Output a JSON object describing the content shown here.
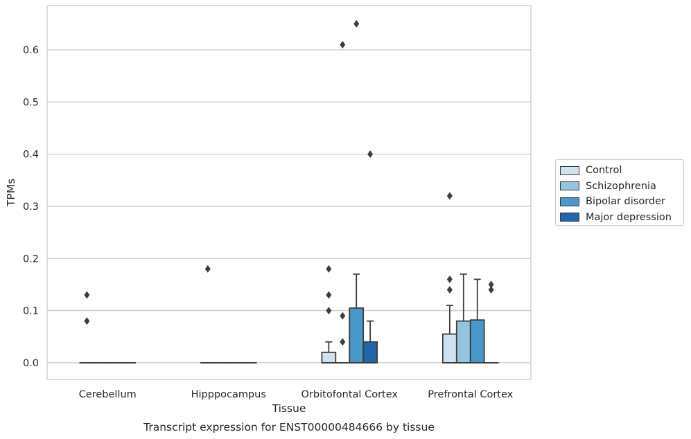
{
  "chart_data": {
    "type": "box",
    "title": "",
    "caption": "Transcript expression for ENST00000484666 by tissue",
    "xlabel": "Tissue",
    "ylabel": "TPMs",
    "ylim": [
      -0.032,
      0.685
    ],
    "yticks": [
      0.0,
      0.1,
      0.2,
      0.3,
      0.4,
      0.5,
      0.6
    ],
    "ytick_labels": [
      "0.0",
      "0.1",
      "0.2",
      "0.3",
      "0.4",
      "0.5",
      "0.6"
    ],
    "grid": "horizontal",
    "legend_position": "right",
    "categories": [
      "Cerebellum",
      "Hipppocampus",
      "Orbitofontal Cortex",
      "Prefrontal Cortex"
    ],
    "series": [
      {
        "name": "Control",
        "color": "#d0e1f2",
        "boxes": [
          {
            "q1": 0,
            "median": 0,
            "q3": 0,
            "whisker_low": 0,
            "whisker_high": 0,
            "outliers": [
              0.08,
              0.13
            ]
          },
          {
            "q1": 0,
            "median": 0,
            "q3": 0,
            "whisker_low": 0,
            "whisker_high": 0,
            "outliers": [
              0.18
            ]
          },
          {
            "q1": 0,
            "median": 0,
            "q3": 0.02,
            "whisker_low": 0,
            "whisker_high": 0.04,
            "outliers": [
              0.1,
              0.13,
              0.18
            ]
          },
          {
            "q1": 0,
            "median": 0,
            "q3": 0.055,
            "whisker_low": 0,
            "whisker_high": 0.11,
            "outliers": [
              0.14,
              0.16,
              0.32
            ]
          }
        ]
      },
      {
        "name": "Schizophrenia",
        "color": "#94c4df",
        "boxes": [
          {
            "q1": 0,
            "median": 0,
            "q3": 0,
            "whisker_low": 0,
            "whisker_high": 0,
            "outliers": []
          },
          {
            "q1": 0,
            "median": 0,
            "q3": 0,
            "whisker_low": 0,
            "whisker_high": 0,
            "outliers": []
          },
          {
            "q1": 0,
            "median": 0,
            "q3": 0,
            "whisker_low": 0,
            "whisker_high": 0,
            "outliers": [
              0.04,
              0.09,
              0.61
            ]
          },
          {
            "q1": 0,
            "median": 0,
            "q3": 0.08,
            "whisker_low": 0,
            "whisker_high": 0.17,
            "outliers": []
          }
        ]
      },
      {
        "name": "Bipolar disorder",
        "color": "#4a98c9",
        "boxes": [
          {
            "q1": 0,
            "median": 0,
            "q3": 0,
            "whisker_low": 0,
            "whisker_high": 0,
            "outliers": []
          },
          {
            "q1": 0,
            "median": 0,
            "q3": 0,
            "whisker_low": 0,
            "whisker_high": 0,
            "outliers": []
          },
          {
            "q1": 0,
            "median": 0,
            "q3": 0.105,
            "whisker_low": 0,
            "whisker_high": 0.17,
            "outliers": [
              0.65
            ]
          },
          {
            "q1": 0,
            "median": 0,
            "q3": 0.082,
            "whisker_low": 0,
            "whisker_high": 0.16,
            "outliers": []
          }
        ]
      },
      {
        "name": "Major depression",
        "color": "#2165ab",
        "boxes": [
          {
            "q1": 0,
            "median": 0,
            "q3": 0,
            "whisker_low": 0,
            "whisker_high": 0,
            "outliers": []
          },
          {
            "q1": 0,
            "median": 0,
            "q3": 0,
            "whisker_low": 0,
            "whisker_high": 0,
            "outliers": []
          },
          {
            "q1": 0,
            "median": 0,
            "q3": 0.04,
            "whisker_low": 0,
            "whisker_high": 0.08,
            "outliers": [
              0.4
            ]
          },
          {
            "q1": 0,
            "median": 0,
            "q3": 0,
            "whisker_low": 0,
            "whisker_high": 0,
            "outliers": [
              0.14,
              0.15
            ]
          }
        ]
      }
    ]
  }
}
